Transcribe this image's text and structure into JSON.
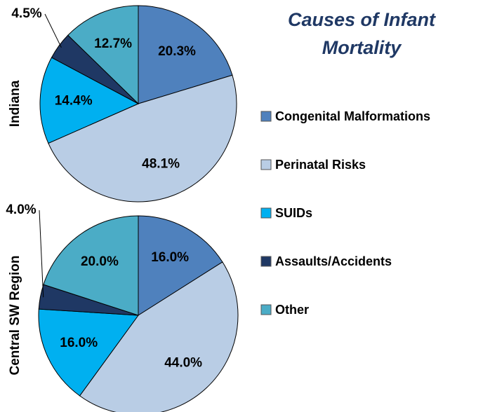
{
  "chart_data": [
    {
      "type": "pie",
      "title": "Causes of Infant Mortality",
      "label": "Indiana",
      "categories": [
        "Congenital Malformations",
        "Perinatal Risks",
        "SUIDs",
        "Assaults/Accidents",
        "Other"
      ],
      "colors": [
        "#4f81bd",
        "#b9cde5",
        "#00b0f0",
        "#1f3864",
        "#4bacc6"
      ],
      "values": [
        20.3,
        48.1,
        14.4,
        4.5,
        12.7
      ],
      "value_labels": [
        "20.3%",
        "48.1%",
        "14.4%",
        "4.5%",
        "12.7%"
      ]
    },
    {
      "type": "pie",
      "label": "Central SW Region",
      "categories": [
        "Congenital Malformations",
        "Perinatal Risks",
        "SUIDs",
        "Assaults/Accidents",
        "Other"
      ],
      "colors": [
        "#4f81bd",
        "#b9cde5",
        "#00b0f0",
        "#1f3864",
        "#4bacc6"
      ],
      "values": [
        16.0,
        44.0,
        16.0,
        4.0,
        20.0
      ],
      "value_labels": [
        "16.0%",
        "44.0%",
        "16.0%",
        "4.0%",
        "20.0%"
      ]
    }
  ]
}
